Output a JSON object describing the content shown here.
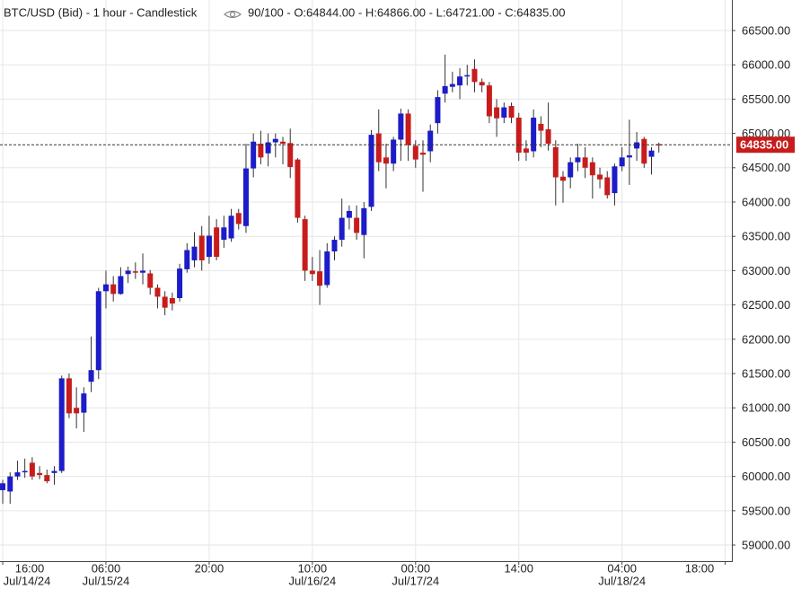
{
  "chart_data": {
    "type": "candlestick",
    "title": "BTC/USD (Bid) - 1 hour - Candlestick",
    "info": "90/100 - O:64844.00 - H:64866.00 - L:64721.00 - C:64835.00",
    "up_color": "#1c1cc8",
    "down_color": "#c81c1c",
    "grid": true,
    "xlim": [
      -0.37,
      98.9
    ],
    "ylim": [
      58765,
      66945
    ],
    "xticks": [
      {
        "value": 0,
        "label": "16:00"
      },
      {
        "value": 14,
        "label": "06:00"
      },
      {
        "value": 28,
        "label": "20:00"
      },
      {
        "value": 42,
        "label": "10:00"
      },
      {
        "value": 56,
        "label": "00:00"
      },
      {
        "value": 70,
        "label": "14:00"
      },
      {
        "value": 84,
        "label": "04:00"
      },
      {
        "value": 98,
        "label": "18:00"
      }
    ],
    "xdate_ticks": [
      {
        "value": 0,
        "label": "Jul/14/24"
      },
      {
        "value": 14,
        "label": "Jul/15/24"
      },
      {
        "value": 42,
        "label": "Jul/16/24"
      },
      {
        "value": 56,
        "label": "Jul/17/24"
      },
      {
        "value": 84,
        "label": "Jul/18/24"
      }
    ],
    "yticks": [
      {
        "value": 66500,
        "label": "66500.00"
      },
      {
        "value": 66000,
        "label": "66000.00"
      },
      {
        "value": 65500,
        "label": "65500.00"
      },
      {
        "value": 65000,
        "label": "65000.00"
      },
      {
        "value": 64500,
        "label": "64500.00"
      },
      {
        "value": 64000,
        "label": "64000.00"
      },
      {
        "value": 63500,
        "label": "63500.00"
      },
      {
        "value": 63000,
        "label": "63000.00"
      },
      {
        "value": 62500,
        "label": "62500.00"
      },
      {
        "value": 62000,
        "label": "62000.00"
      },
      {
        "value": 61500,
        "label": "61500.00"
      },
      {
        "value": 61000,
        "label": "61000.00"
      },
      {
        "value": 60500,
        "label": "60500.00"
      },
      {
        "value": 60000,
        "label": "60000.00"
      },
      {
        "value": 59500,
        "label": "59500.00"
      },
      {
        "value": 59000,
        "label": "59000.00"
      }
    ],
    "last_price": {
      "value": 64835,
      "label": "64835.00"
    },
    "open": [
      59800,
      59780,
      60000,
      60060,
      60200,
      60050,
      60020,
      60050,
      60080,
      61430,
      61000,
      60930,
      61380,
      61550,
      62700,
      62800,
      62660,
      62950,
      62990,
      62970,
      62960,
      62750,
      62620,
      62600,
      62600,
      63020,
      63150,
      63510,
      63200,
      63630,
      63450,
      63470,
      63840,
      63650,
      64490,
      64850,
      64710,
      64870,
      64880,
      64860,
      64620,
      63750,
      63000,
      62990,
      62790,
      63280,
      63450,
      63770,
      63770,
      63520,
      63930,
      65000,
      64650,
      64560,
      64910,
      65290,
      64820,
      64720,
      64740,
      65150,
      65580,
      65680,
      65700,
      65830,
      65940,
      65750,
      65700,
      65380,
      65230,
      65400,
      65230,
      64780,
      64740,
      65140,
      65060,
      64800,
      64370,
      64360,
      64580,
      64650,
      64580,
      64400,
      64360,
      64130,
      64520,
      64650,
      64780,
      64920,
      64660,
      64844
    ],
    "high": [
      59950,
      60060,
      60230,
      60260,
      60280,
      60150,
      60100,
      60150,
      61470,
      61500,
      61300,
      61300,
      62040,
      62750,
      63000,
      62920,
      63050,
      63060,
      63120,
      63250,
      63010,
      62800,
      62700,
      62680,
      63100,
      63400,
      63560,
      63650,
      63800,
      63750,
      63800,
      63900,
      63900,
      64850,
      65000,
      65040,
      65000,
      65000,
      64950,
      65070,
      64640,
      63800,
      63200,
      63300,
      63400,
      63500,
      64050,
      63950,
      63950,
      64000,
      65050,
      65350,
      64850,
      64950,
      65360,
      65350,
      64900,
      64900,
      65130,
      65630,
      66150,
      65900,
      65950,
      66000,
      66080,
      65800,
      65750,
      65500,
      65450,
      65450,
      65300,
      64900,
      65350,
      65250,
      65450,
      64900,
      64450,
      64650,
      64850,
      64800,
      64650,
      64500,
      64450,
      64560,
      64800,
      65200,
      65020,
      64950,
      64800,
      64866
    ],
    "low": [
      59600,
      59600,
      59950,
      59980,
      59950,
      59960,
      59900,
      59880,
      60050,
      60850,
      60700,
      60650,
      61230,
      61420,
      62450,
      62550,
      62650,
      62820,
      62880,
      62800,
      62650,
      62450,
      62350,
      62420,
      62550,
      62970,
      63050,
      63000,
      63100,
      63150,
      63330,
      63420,
      63600,
      63550,
      64360,
      64550,
      64520,
      64650,
      64550,
      64350,
      63700,
      62850,
      62850,
      62500,
      62750,
      63150,
      63350,
      63600,
      63450,
      63180,
      63870,
      64450,
      64200,
      64450,
      64600,
      64600,
      64500,
      64150,
      64580,
      65000,
      65450,
      65600,
      65500,
      65700,
      65600,
      65600,
      65150,
      64950,
      65150,
      65150,
      64600,
      64600,
      64650,
      64800,
      64750,
      63950,
      63990,
      64200,
      64450,
      64350,
      64050,
      64200,
      64050,
      63950,
      64450,
      64250,
      64600,
      64500,
      64400,
      64721
    ],
    "close": [
      59900,
      60000,
      60060,
      60080,
      60000,
      60020,
      59930,
      60080,
      61430,
      60920,
      60920,
      61210,
      61550,
      62700,
      62800,
      62660,
      62920,
      63000,
      62970,
      63000,
      62750,
      62620,
      62460,
      62520,
      63030,
      63300,
      63350,
      63150,
      63510,
      63200,
      63630,
      63800,
      63680,
      64490,
      64880,
      64650,
      64870,
      64920,
      64850,
      64510,
      63770,
      63000,
      62950,
      62780,
      63280,
      63450,
      63770,
      63870,
      63550,
      63910,
      64980,
      64580,
      64560,
      64910,
      65290,
      64830,
      64620,
      64690,
      65040,
      65530,
      65690,
      65720,
      65830,
      65850,
      65750,
      65700,
      65250,
      65220,
      65380,
      65230,
      64720,
      64720,
      65230,
      65040,
      64850,
      64360,
      64310,
      64580,
      64650,
      64500,
      64390,
      64330,
      64100,
      64520,
      64650,
      64680,
      64870,
      64560,
      64750,
      64835
    ]
  }
}
